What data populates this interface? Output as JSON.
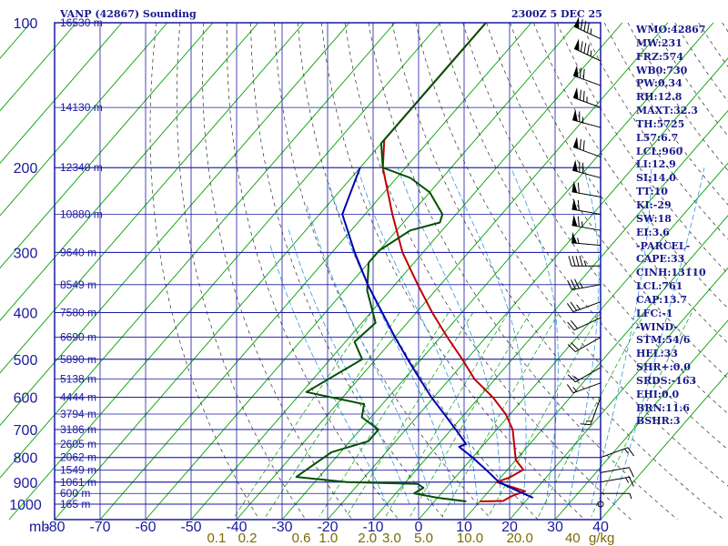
{
  "header": {
    "title": "VANP (42867) Sounding",
    "valid_time": "2300Z  5 DEC 25"
  },
  "indices": [
    "WMO:42867",
    "MW:231",
    "FRZ:574",
    "WB0:730",
    "PW:0.34",
    "RH:12.8",
    "MAXT:32.3",
    "TH:5725",
    "L57:6.7",
    "LCL:960",
    "LI:12.9",
    "SI:14.0",
    "TT:10",
    "KI:-29",
    "SW:18",
    "EI:3.6",
    "-PARCEL-",
    "CAPE:33",
    "CINH:13110",
    "LCL:761",
    "CAP:13.7",
    "LFC:-1",
    "-WIND-",
    "STM:54/6",
    "HEL:33",
    "SHR+:0.0",
    "SRDS:-163",
    "EHI:0.0",
    "BRN:11.6",
    "BSHR:3"
  ],
  "colors": {
    "frame": "#1a1aa0",
    "isotherm": "#00a000",
    "dry_adiabat": "#2e2e2e",
    "moist_adiabat": "#3399dd",
    "temperature": "#c00000",
    "dewpoint": "#005000",
    "parcel": "#0000b0",
    "mixing_label": "#7a6a00",
    "wind": "#000000"
  },
  "chart_data": {
    "type": "line",
    "skew_t": true,
    "y_axis": {
      "label": "mb",
      "scale": "log",
      "range": [
        1000,
        100
      ],
      "ticks": [
        "100",
        "200",
        "300",
        "400",
        "500",
        "600",
        "700",
        "800",
        "900",
        "1000"
      ]
    },
    "x_axis": {
      "label": "",
      "unit": "°C",
      "range": [
        -80,
        40
      ],
      "ticks": [
        "-80",
        "-70",
        "-60",
        "-50",
        "-40",
        "-30",
        "-20",
        "-10",
        "0",
        "10",
        "20",
        "30",
        "40"
      ]
    },
    "mixing_ratio_labels": [
      "0.1",
      "0.2",
      "0.6",
      "1.0",
      "2.0",
      "3.0",
      "5.0",
      "10.0",
      "20.0",
      "40"
    ],
    "mixing_ratio_unit": "g/kg",
    "height_labels": [
      {
        "p": 100,
        "label": "16530 m"
      },
      {
        "p": 150,
        "label": "14130 m"
      },
      {
        "p": 200,
        "label": "12340 m"
      },
      {
        "p": 250,
        "label": "10880 m"
      },
      {
        "p": 300,
        "label": "9640 m"
      },
      {
        "p": 350,
        "label": "8549 m"
      },
      {
        "p": 400,
        "label": "7580 m"
      },
      {
        "p": 450,
        "label": "6690 m"
      },
      {
        "p": 500,
        "label": "5890 m"
      },
      {
        "p": 550,
        "label": "5138 m"
      },
      {
        "p": 600,
        "label": "4444 m"
      },
      {
        "p": 650,
        "label": "3794 m"
      },
      {
        "p": 700,
        "label": "3186 m"
      },
      {
        "p": 750,
        "label": "2605 m"
      },
      {
        "p": 800,
        "label": "2062 m"
      },
      {
        "p": 850,
        "label": "1549 m"
      },
      {
        "p": 900,
        "label": "1061 m"
      },
      {
        "p": 950,
        "label": "600 m"
      },
      {
        "p": 1000,
        "label": "165 m"
      }
    ],
    "series": [
      {
        "points": [
          [
            987,
            10
          ],
          [
            985,
            15
          ],
          [
            962,
            16
          ],
          [
            940,
            18
          ],
          [
            900,
            10
          ],
          [
            880,
            12
          ],
          [
            848,
            13.5
          ],
          [
            810,
            10
          ],
          [
            700,
            3.5
          ],
          [
            650,
            -1
          ],
          [
            600,
            -7
          ],
          [
            550,
            -14.5
          ],
          [
            500,
            -21
          ],
          [
            450,
            -28.5
          ],
          [
            400,
            -36.5
          ],
          [
            350,
            -45
          ],
          [
            300,
            -54.5
          ],
          [
            250,
            -64
          ],
          [
            200,
            -75
          ],
          [
            175,
            -80
          ],
          [
            150,
            -80
          ],
          [
            100,
            -80
          ]
        ]
      },
      {
        "points": [
          [
            987,
            7
          ],
          [
            970,
            0
          ],
          [
            950,
            -6
          ],
          [
            925,
            -5
          ],
          [
            908,
            -7
          ],
          [
            900,
            -23
          ],
          [
            878,
            -35
          ],
          [
            860,
            -34.5
          ],
          [
            780,
            -32
          ],
          [
            740,
            -26
          ],
          [
            700,
            -26
          ],
          [
            660,
            -32
          ],
          [
            620,
            -34
          ],
          [
            585,
            -49
          ],
          [
            500,
            -43
          ],
          [
            460,
            -48
          ],
          [
            420,
            -47
          ],
          [
            360,
            -55
          ],
          [
            315,
            -60
          ],
          [
            297,
            -60
          ],
          [
            270,
            -57
          ],
          [
            260,
            -52
          ],
          [
            250,
            -53
          ],
          [
            225,
            -60
          ],
          [
            210,
            -67
          ],
          [
            200,
            -75
          ],
          [
            178,
            -80
          ],
          [
            100,
            -80
          ]
        ]
      },
      {
        "points": [
          [
            970,
            21
          ],
          [
            940,
            16.5
          ],
          [
            900,
            10.5
          ],
          [
            850,
            5.5
          ],
          [
            800,
            0
          ],
          [
            760,
            -5
          ],
          [
            750,
            -4
          ],
          [
            700,
            -9
          ],
          [
            650,
            -14.5
          ],
          [
            600,
            -20.5
          ],
          [
            550,
            -26.5
          ],
          [
            500,
            -33
          ],
          [
            450,
            -40
          ],
          [
            400,
            -47.5
          ],
          [
            350,
            -56
          ],
          [
            300,
            -65
          ],
          [
            250,
            -75
          ],
          [
            200,
            -80
          ]
        ]
      }
    ],
    "wind_barbs": [
      {
        "p": 108,
        "dir": 295,
        "kt": 85
      },
      {
        "p": 120,
        "dir": 295,
        "kt": 85
      },
      {
        "p": 135,
        "dir": 290,
        "kt": 70
      },
      {
        "p": 150,
        "dir": 290,
        "kt": 75
      },
      {
        "p": 165,
        "dir": 285,
        "kt": 65
      },
      {
        "p": 190,
        "dir": 290,
        "kt": 70
      },
      {
        "p": 210,
        "dir": 285,
        "kt": 70
      },
      {
        "p": 230,
        "dir": 280,
        "kt": 60
      },
      {
        "p": 250,
        "dir": 280,
        "kt": 60
      },
      {
        "p": 270,
        "dir": 280,
        "kt": 65
      },
      {
        "p": 290,
        "dir": 275,
        "kt": 55
      },
      {
        "p": 320,
        "dir": 270,
        "kt": 45
      },
      {
        "p": 350,
        "dir": 260,
        "kt": 35
      },
      {
        "p": 380,
        "dir": 250,
        "kt": 25
      },
      {
        "p": 410,
        "dir": 245,
        "kt": 20
      },
      {
        "p": 450,
        "dir": 240,
        "kt": 20
      },
      {
        "p": 520,
        "dir": 240,
        "kt": 15
      },
      {
        "p": 560,
        "dir": 250,
        "kt": 15
      },
      {
        "p": 600,
        "dir": 200,
        "kt": 15
      },
      {
        "p": 800,
        "dir": 70,
        "kt": 15
      },
      {
        "p": 860,
        "dir": 80,
        "kt": 10
      },
      {
        "p": 900,
        "dir": 80,
        "kt": 15
      },
      {
        "p": 950,
        "dir": 90,
        "kt": 5
      },
      {
        "p": 1000,
        "dir": 0,
        "kt": 0
      }
    ]
  }
}
